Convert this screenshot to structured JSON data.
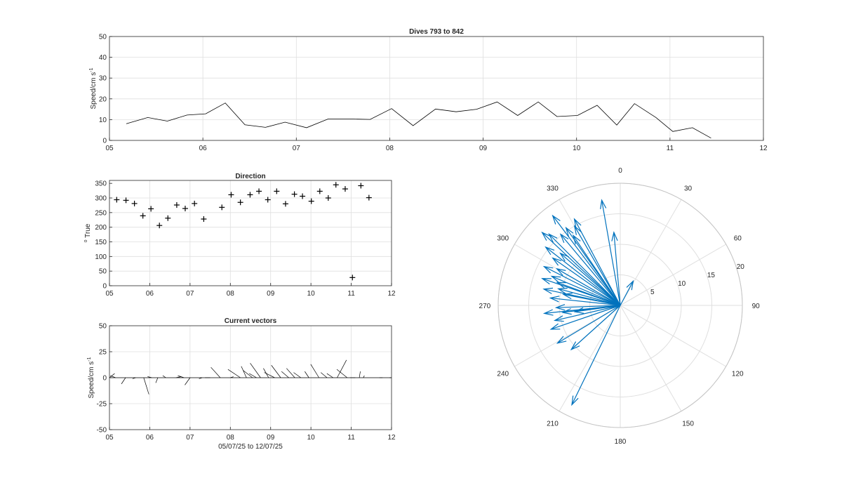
{
  "figure": {
    "colors": {
      "axis": "#262626",
      "grid": "#dfdfdf",
      "vector": "#0072bd"
    }
  },
  "chart_data": [
    {
      "id": "speed",
      "type": "line",
      "title": "Dives 793 to 842",
      "ylabel_main": "Speed/cm s",
      "ylabel_sup": "-1",
      "xlim": [
        5,
        12
      ],
      "ylim": [
        0,
        50
      ],
      "xticks": [
        5,
        6,
        7,
        8,
        9,
        10,
        11,
        12
      ],
      "xticklabels": [
        "05",
        "06",
        "07",
        "08",
        "09",
        "10",
        "11",
        "12"
      ],
      "yticks": [
        0,
        10,
        20,
        30,
        40,
        50
      ],
      "yticklabels": [
        "0",
        "10",
        "20",
        "30",
        "40",
        "50"
      ],
      "grid": true,
      "x": [
        5.18,
        5.41,
        5.62,
        5.83,
        6.03,
        6.24,
        6.45,
        6.67,
        6.88,
        7.11,
        7.34,
        7.57,
        7.79,
        8.02,
        8.25,
        8.49,
        8.71,
        8.93,
        9.15,
        9.37,
        9.59,
        9.79,
        10.01,
        10.22,
        10.43,
        10.62,
        10.85,
        11.03,
        11.24,
        11.44
      ],
      "y": [
        8,
        11,
        9.3,
        12.2,
        12.8,
        18,
        7.5,
        6.3,
        8.8,
        6.1,
        10.3,
        10.3,
        10.1,
        15.3,
        7.1,
        15.1,
        13.8,
        15,
        18.5,
        12,
        18.5,
        11.5,
        12,
        16.9,
        7.4,
        17.7,
        11,
        4.3,
        6.1,
        1.1
      ]
    },
    {
      "id": "direction",
      "type": "scatter",
      "title": "Direction",
      "ylabel_sup": "o",
      "ylabel_main": " True",
      "marker": "+",
      "xlim": [
        5,
        12
      ],
      "ylim": [
        0,
        360
      ],
      "xticks": [
        5,
        6,
        7,
        8,
        9,
        10,
        11,
        12
      ],
      "xticklabels": [
        "05",
        "06",
        "07",
        "08",
        "09",
        "10",
        "11",
        "12"
      ],
      "yticks": [
        0,
        50,
        100,
        150,
        200,
        250,
        300,
        350
      ],
      "yticklabels": [
        "0",
        "50",
        "100",
        "150",
        "200",
        "250",
        "300",
        "350"
      ],
      "grid": true,
      "x": [
        5.18,
        5.41,
        5.62,
        5.83,
        6.03,
        6.24,
        6.45,
        6.67,
        6.88,
        7.11,
        7.34,
        7.79,
        8.02,
        8.25,
        8.49,
        8.71,
        8.93,
        9.15,
        9.37,
        9.59,
        9.79,
        10.01,
        10.22,
        10.43,
        10.62,
        10.85,
        11.03,
        11.24,
        11.44
      ],
      "y": [
        294,
        292,
        281,
        239,
        263,
        206,
        231,
        276,
        264,
        281,
        228,
        268,
        311,
        285,
        311,
        323,
        294,
        323,
        280,
        313,
        306,
        289,
        323,
        300,
        345,
        331,
        28,
        342,
        301
      ]
    },
    {
      "id": "vectors",
      "type": "vector-stick",
      "title": "Current vectors",
      "ylabel_main": "Speed/cm s",
      "ylabel_sup": "-1",
      "xlabel": "05/07/25 to 12/07/25",
      "xlim": [
        5,
        12
      ],
      "ylim": [
        -50,
        50
      ],
      "xticks": [
        5,
        6,
        7,
        8,
        9,
        10,
        11,
        12
      ],
      "xticklabels": [
        "05",
        "06",
        "07",
        "08",
        "09",
        "10",
        "11",
        "12"
      ],
      "yticks": [
        -50,
        -25,
        0,
        25,
        50
      ],
      "yticklabels": [
        "-50",
        "-25",
        "0",
        "25",
        "50"
      ],
      "grid": true,
      "vectors": [
        {
          "x": 5.0,
          "east": 5,
          "north": 4
        },
        {
          "x": 5.15,
          "east": -5,
          "north": 2
        },
        {
          "x": 5.4,
          "east": -4,
          "north": -6
        },
        {
          "x": 5.65,
          "east": -3,
          "north": -1
        },
        {
          "x": 5.85,
          "east": 5,
          "north": -16
        },
        {
          "x": 6.05,
          "east": -4,
          "north": 1
        },
        {
          "x": 6.2,
          "east": -2,
          "north": -5
        },
        {
          "x": 6.4,
          "east": -3,
          "north": 2
        },
        {
          "x": 6.65,
          "east": 5,
          "north": 1
        },
        {
          "x": 6.85,
          "east": -6,
          "north": 2
        },
        {
          "x": 7.0,
          "east": -5,
          "north": -7
        },
        {
          "x": 7.3,
          "east": -3,
          "north": -1
        },
        {
          "x": 7.5,
          "east": -5,
          "north": 0
        },
        {
          "x": 7.75,
          "east": -9,
          "north": 10
        },
        {
          "x": 8.0,
          "east": 3,
          "north": 1
        },
        {
          "x": 8.25,
          "east": -12,
          "north": 8
        },
        {
          "x": 8.4,
          "east": -5,
          "north": 11
        },
        {
          "x": 8.55,
          "east": -9,
          "north": 7
        },
        {
          "x": 8.65,
          "east": -7,
          "north": 4
        },
        {
          "x": 8.75,
          "east": -10,
          "north": 14
        },
        {
          "x": 8.95,
          "east": -5,
          "north": 9
        },
        {
          "x": 9.1,
          "east": -10,
          "north": 5
        },
        {
          "x": 9.25,
          "east": -9,
          "north": 12
        },
        {
          "x": 9.45,
          "east": -7,
          "north": 6
        },
        {
          "x": 9.6,
          "east": -8,
          "north": 9
        },
        {
          "x": 9.75,
          "east": -7,
          "north": 5
        },
        {
          "x": 9.95,
          "east": -4,
          "north": 6
        },
        {
          "x": 10.2,
          "east": -8,
          "north": 13
        },
        {
          "x": 10.4,
          "east": -6,
          "north": 5
        },
        {
          "x": 10.55,
          "east": -6,
          "north": 4
        },
        {
          "x": 10.65,
          "east": 9,
          "north": 17
        },
        {
          "x": 10.9,
          "east": -10,
          "north": 8
        },
        {
          "x": 11.1,
          "east": -5,
          "north": 0
        },
        {
          "x": 11.2,
          "east": 1,
          "north": 6
        },
        {
          "x": 11.3,
          "east": 1,
          "north": 2
        },
        {
          "x": 11.7,
          "east": 3,
          "north": 0
        },
        {
          "x": 11.95,
          "east": 2,
          "north": 0
        }
      ]
    },
    {
      "id": "rose",
      "type": "polar-compass",
      "theta_zero": "top",
      "theta_direction": "clockwise",
      "rlim": [
        0,
        20
      ],
      "rticks": [
        5,
        10,
        15,
        20
      ],
      "rticklabels": [
        "5",
        "10",
        "15",
        "20"
      ],
      "thetaticks": [
        0,
        30,
        60,
        90,
        120,
        150,
        180,
        210,
        240,
        270,
        300,
        330
      ],
      "thetaticklabels": [
        "0",
        "30",
        "60",
        "90",
        "120",
        "150",
        "180",
        "210",
        "240",
        "270",
        "300",
        "330"
      ],
      "grid": true,
      "vectors": [
        {
          "dir": 350,
          "speed": 17.5
        },
        {
          "dir": 355,
          "speed": 12
        },
        {
          "dir": 28,
          "speed": 4.5
        },
        {
          "dir": 332,
          "speed": 16
        },
        {
          "dir": 326,
          "speed": 13.8
        },
        {
          "dir": 330,
          "speed": 15
        },
        {
          "dir": 323,
          "speed": 18.4
        },
        {
          "dir": 325,
          "speed": 15.5
        },
        {
          "dir": 320,
          "speed": 15.2
        },
        {
          "dir": 315,
          "speed": 16.5
        },
        {
          "dir": 313,
          "speed": 17.5
        },
        {
          "dir": 308,
          "speed": 15.5
        },
        {
          "dir": 305,
          "speed": 13.5
        },
        {
          "dir": 311,
          "speed": 13
        },
        {
          "dir": 300,
          "speed": 12
        },
        {
          "dir": 297,
          "speed": 14
        },
        {
          "dir": 293,
          "speed": 12.2
        },
        {
          "dir": 289,
          "speed": 13.5
        },
        {
          "dir": 290,
          "speed": 11
        },
        {
          "dir": 285,
          "speed": 10.5
        },
        {
          "dir": 282,
          "speed": 12.8
        },
        {
          "dir": 281,
          "speed": 9.5
        },
        {
          "dir": 276,
          "speed": 11.5
        },
        {
          "dir": 268,
          "speed": 10.5
        },
        {
          "dir": 264,
          "speed": 12.5
        },
        {
          "dir": 263,
          "speed": 9.5
        },
        {
          "dir": 262,
          "speed": 7.5
        },
        {
          "dir": 257,
          "speed": 11
        },
        {
          "dir": 251,
          "speed": 12
        },
        {
          "dir": 239,
          "speed": 12
        },
        {
          "dir": 228,
          "speed": 10.8
        },
        {
          "dir": 206,
          "speed": 18.1
        }
      ]
    }
  ]
}
